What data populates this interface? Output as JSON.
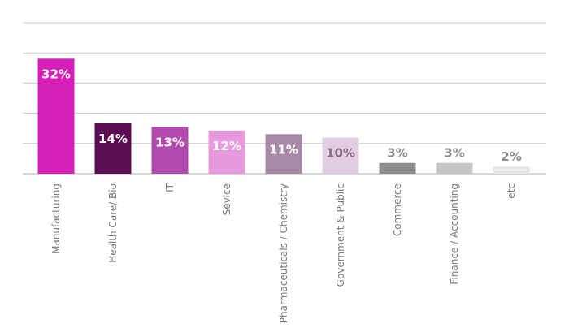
{
  "chart_data": {
    "type": "bar",
    "title": "",
    "xlabel": "",
    "ylabel": "",
    "ylim": [
      0,
      42
    ],
    "grid": true,
    "categories": [
      "Manufacturing",
      "Health Care/ Bio",
      "IT",
      "Sevice",
      "Pharmaceuticals / Chemistry",
      "Government & Public",
      "Commerce",
      "Finance / Accounting",
      "etc"
    ],
    "values": [
      32,
      14,
      13,
      12,
      11,
      10,
      3,
      3,
      2
    ],
    "value_labels": [
      "32%",
      "14%",
      "13%",
      "12%",
      "11%",
      "10%",
      "3%",
      "3%",
      "2%"
    ],
    "bar_colors": [
      "#d61eb9",
      "#5c0c52",
      "#b04aac",
      "#e699dc",
      "#a98aa6",
      "#e1cde1",
      "#8c8c8c",
      "#c6c6c6",
      "#e6e6e6"
    ],
    "label_colors": [
      "#ffffff",
      "#ffffff",
      "#ffffff",
      "#ffffff",
      "#ffffff",
      "#8a6a88",
      "#8c8c8c",
      "#8c8c8c",
      "#8c8c8c"
    ],
    "label_inside": [
      true,
      true,
      true,
      true,
      true,
      true,
      false,
      false,
      false
    ]
  }
}
